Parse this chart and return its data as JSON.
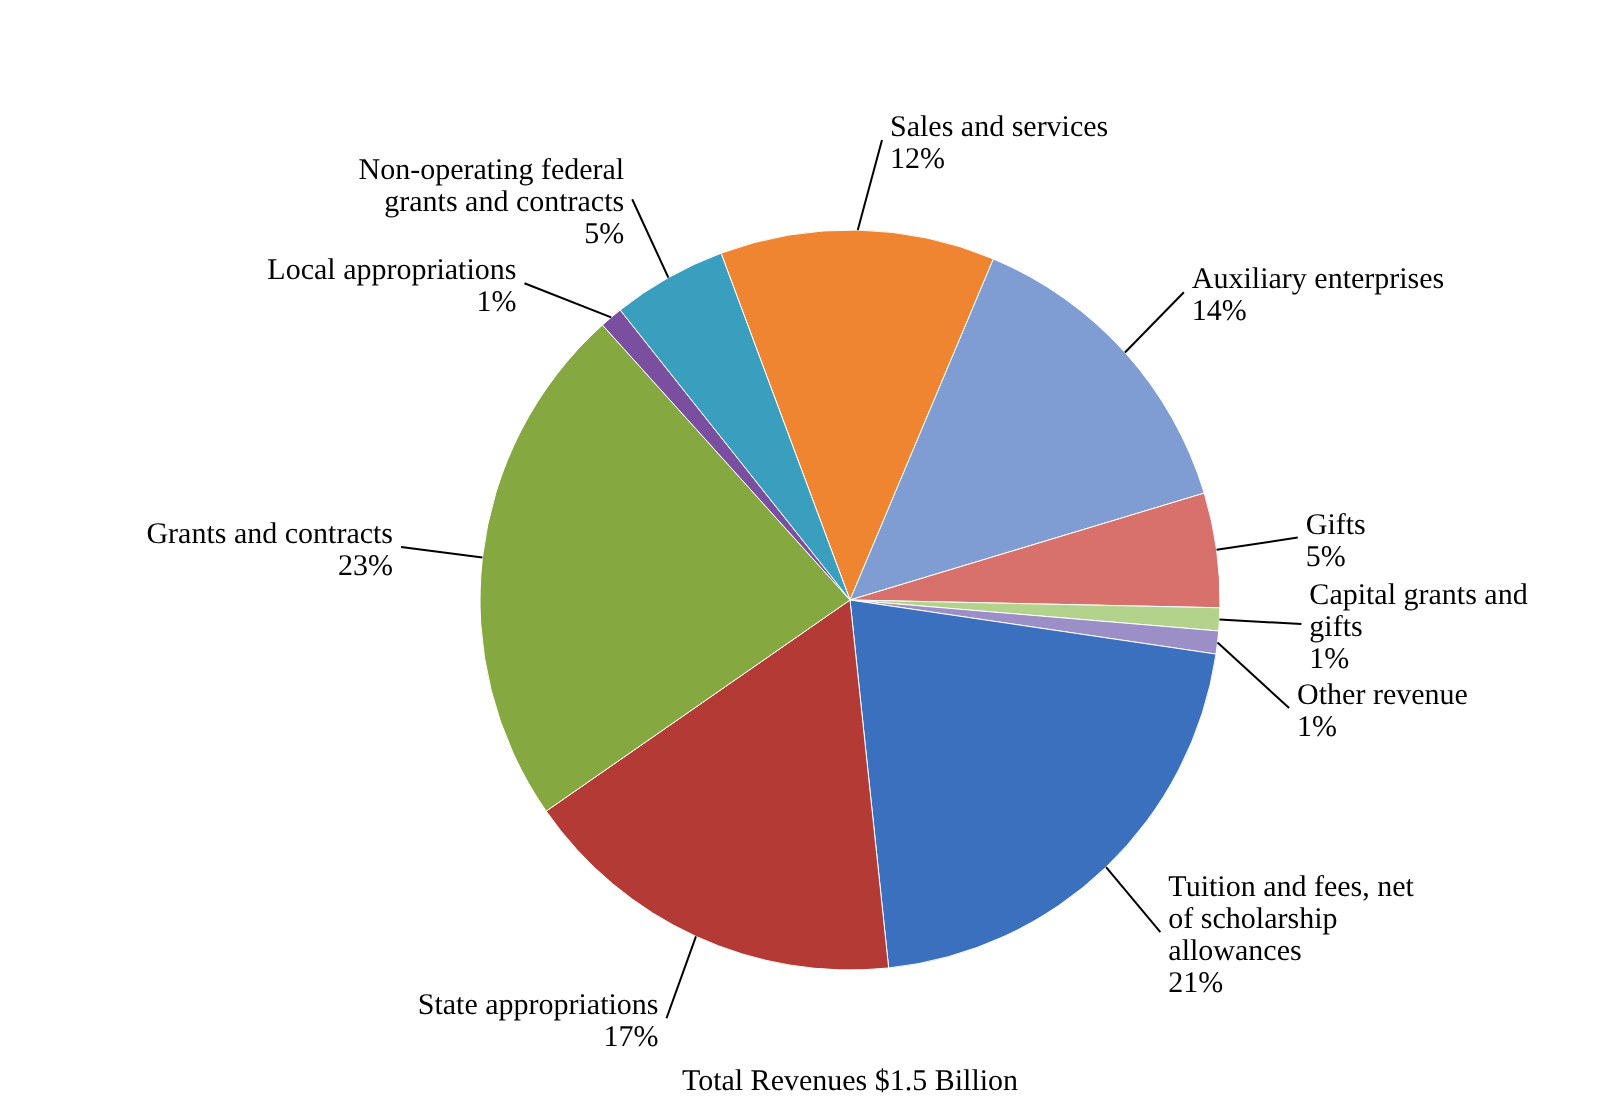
{
  "chart_data": {
    "type": "pie",
    "categories": [
      "Sales and services",
      "Auxiliary enterprises",
      "Gifts",
      "Capital grants and gifts",
      "Other revenue",
      "Tuition and fees, net of scholarship allowances",
      "State appropriations",
      "Grants and contracts",
      "Local appropriations",
      "Non-operating federal grants and contracts"
    ],
    "values": [
      12,
      14,
      5,
      1,
      1,
      21,
      17,
      23,
      1,
      5
    ],
    "value_labels": [
      "12%",
      "14%",
      "5%",
      "1%",
      "1%",
      "21%",
      "17%",
      "23%",
      "1%",
      "5%"
    ],
    "colors": [
      "#ef8530",
      "#7f9dd2",
      "#d8706c",
      "#b3d38c",
      "#9c8ec6",
      "#3a70bd",
      "#b33a35",
      "#86a840",
      "#7a4f9f",
      "#3a9fbf"
    ],
    "annotations": [
      "Total Revenues  $1.5 Billion"
    ]
  }
}
